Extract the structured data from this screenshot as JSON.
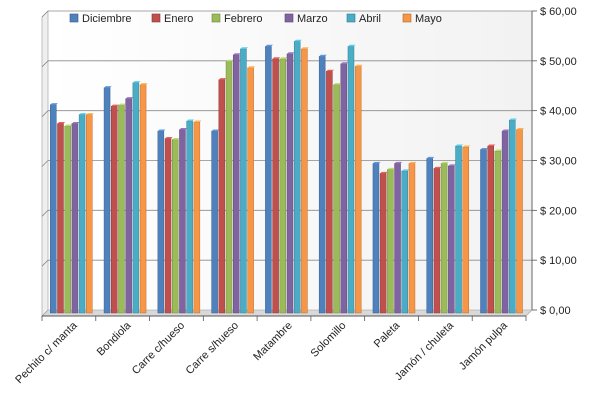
{
  "chart_data": {
    "type": "bar",
    "title": "",
    "xlabel": "",
    "ylabel": "",
    "ylim": [
      0,
      60
    ],
    "y_axis_side": "right",
    "grid": true,
    "legend_position": "top",
    "y_ticks": [
      "$ 0,00",
      "$ 10,00",
      "$ 20,00",
      "$ 30,00",
      "$ 40,00",
      "$ 50,00",
      "$ 60,00"
    ],
    "categories": [
      "Pechito c/ manta",
      "Bondiola",
      "Carre c/hueso",
      "Carre s/hueso",
      "Matambre",
      "Solomillo",
      "Paleta",
      "Jamón / chuleta",
      "Jamón pulpa"
    ],
    "series": [
      {
        "name": "Diciembre",
        "color": "#4f81bd",
        "values": [
          41.8,
          45.2,
          36.5,
          36.5,
          53.5,
          51.5,
          30.0,
          31.0,
          32.8
        ]
      },
      {
        "name": "Enero",
        "color": "#c0504d",
        "values": [
          38.0,
          41.5,
          35.0,
          46.8,
          51.0,
          48.5,
          28.0,
          29.0,
          33.5
        ]
      },
      {
        "name": "Febrero",
        "color": "#9bbb59",
        "values": [
          37.5,
          41.7,
          34.8,
          50.5,
          51.0,
          45.8,
          28.8,
          30.0,
          32.5
        ]
      },
      {
        "name": "Marzo",
        "color": "#8064a2",
        "values": [
          38.0,
          43.0,
          36.8,
          51.8,
          52.0,
          50.0,
          30.0,
          29.5,
          36.5
        ]
      },
      {
        "name": "Abril",
        "color": "#4bacc6",
        "values": [
          39.8,
          46.2,
          38.5,
          53.0,
          54.5,
          53.5,
          28.5,
          33.5,
          38.7
        ]
      },
      {
        "name": "Mayo",
        "color": "#f79646",
        "values": [
          39.8,
          45.8,
          38.3,
          49.2,
          53.0,
          49.5,
          30.0,
          33.3,
          36.8
        ]
      }
    ]
  }
}
